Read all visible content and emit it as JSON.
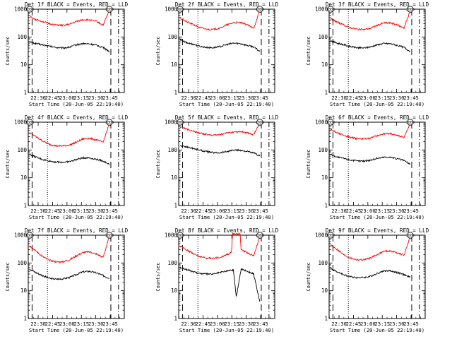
{
  "colors": {
    "background": "#ffffff",
    "axes": "#000000",
    "events": "#000000",
    "lld": "#ff0000"
  },
  "shared": {
    "ylabel": "Counts/sec",
    "xlabel": "Start Time (20-Jun-05 22:19:40)",
    "xticks": [
      "22:30",
      "22:45",
      "23:00",
      "23:15",
      "23:30",
      "23:45"
    ],
    "ytick_labels": [
      "1",
      "10",
      "100",
      "1000"
    ],
    "ylim": [
      1,
      1000
    ],
    "ymarker": "1000",
    "x_range_minutes": [
      0,
      100
    ],
    "xtick_minutes": [
      10.33,
      25.33,
      40.33,
      55.33,
      70.33,
      85.33
    ],
    "markers_minutes": {
      "long_dash": [
        4.0,
        86.0
      ],
      "dotted": [
        20.0
      ],
      "dash_dot": [
        94.0
      ]
    },
    "data_span_minutes": [
      1.5,
      84.5
    ]
  },
  "chart_data": [
    {
      "type": "line",
      "title": "Det 1f BLACK = Events, RED = LLD",
      "series": [
        {
          "name": "Events",
          "color": "black",
          "x": [
            1.5,
            8,
            15,
            22,
            29,
            36,
            43,
            50,
            57,
            64,
            71,
            78,
            84.5
          ],
          "y": [
            65,
            58,
            52,
            46,
            42,
            40,
            43,
            52,
            58,
            56,
            50,
            42,
            30
          ]
        },
        {
          "name": "LLD",
          "color": "red",
          "x": [
            1.5,
            8,
            15,
            22,
            29,
            36,
            43,
            50,
            57,
            64,
            71,
            78,
            84.5
          ],
          "y": [
            560,
            420,
            360,
            300,
            270,
            260,
            285,
            360,
            420,
            410,
            360,
            270,
            900
          ]
        }
      ]
    },
    {
      "type": "line",
      "title": "Det 2f BLACK = Events, RED = LLD",
      "series": [
        {
          "name": "Events",
          "color": "black",
          "x": [
            1.5,
            8,
            15,
            22,
            29,
            36,
            43,
            50,
            57,
            64,
            71,
            78,
            84.5
          ],
          "y": [
            80,
            62,
            55,
            46,
            42,
            41,
            45,
            53,
            60,
            58,
            50,
            44,
            30
          ]
        },
        {
          "name": "LLD",
          "color": "red",
          "x": [
            1.5,
            8,
            15,
            22,
            29,
            36,
            43,
            50,
            57,
            64,
            71,
            78,
            84.5
          ],
          "y": [
            480,
            360,
            280,
            220,
            190,
            185,
            210,
            270,
            330,
            330,
            280,
            200,
            900
          ]
        }
      ]
    },
    {
      "type": "line",
      "title": "Det 3f BLACK = Events, RED = LLD",
      "series": [
        {
          "name": "Events",
          "color": "black",
          "x": [
            1.5,
            8,
            15,
            22,
            29,
            36,
            43,
            50,
            57,
            64,
            71,
            78,
            84.5
          ],
          "y": [
            75,
            60,
            53,
            45,
            41,
            40,
            44,
            52,
            58,
            57,
            50,
            42,
            30
          ]
        },
        {
          "name": "LLD",
          "color": "red",
          "x": [
            1.5,
            8,
            15,
            22,
            29,
            36,
            43,
            50,
            57,
            64,
            71,
            78,
            84.5
          ],
          "y": [
            460,
            350,
            270,
            215,
            190,
            185,
            205,
            260,
            320,
            320,
            270,
            210,
            900
          ]
        }
      ]
    },
    {
      "type": "line",
      "title": "Det 4f BLACK = Events, RED = LLD",
      "series": [
        {
          "name": "Events",
          "color": "black",
          "x": [
            1.5,
            8,
            15,
            22,
            29,
            36,
            43,
            50,
            57,
            64,
            71,
            78,
            84.5
          ],
          "y": [
            70,
            55,
            45,
            40,
            37,
            36,
            38,
            45,
            52,
            52,
            46,
            40,
            30
          ]
        },
        {
          "name": "LLD",
          "color": "red",
          "x": [
            1.5,
            8,
            15,
            22,
            29,
            36,
            43,
            50,
            57,
            64,
            71,
            78,
            84.5
          ],
          "y": [
            420,
            300,
            210,
            160,
            140,
            140,
            150,
            190,
            250,
            260,
            230,
            190,
            900
          ]
        }
      ]
    },
    {
      "type": "line",
      "title": "Det 5f BLACK = Events, RED = LLD",
      "series": [
        {
          "name": "Events",
          "color": "black",
          "x": [
            1.5,
            8,
            15,
            22,
            29,
            36,
            43,
            50,
            57,
            64,
            71,
            78,
            84.5
          ],
          "y": [
            140,
            130,
            115,
            98,
            88,
            80,
            80,
            88,
            98,
            98,
            88,
            78,
            60
          ]
        },
        {
          "name": "LLD",
          "color": "red",
          "x": [
            1.5,
            8,
            15,
            22,
            29,
            36,
            43,
            50,
            57,
            64,
            71,
            78,
            84.5
          ],
          "y": [
            700,
            560,
            470,
            400,
            360,
            345,
            360,
            400,
            450,
            460,
            420,
            360,
            900
          ]
        }
      ]
    },
    {
      "type": "line",
      "title": "Det 6f BLACK = Events, RED = LLD",
      "series": [
        {
          "name": "Events",
          "color": "black",
          "x": [
            1.5,
            8,
            15,
            22,
            29,
            36,
            43,
            50,
            57,
            64,
            71,
            78,
            84.5
          ],
          "y": [
            70,
            56,
            50,
            44,
            40,
            40,
            43,
            50,
            55,
            55,
            48,
            42,
            30
          ]
        },
        {
          "name": "LLD",
          "color": "red",
          "x": [
            1.5,
            8,
            15,
            22,
            29,
            36,
            43,
            50,
            57,
            64,
            71,
            78,
            84.5
          ],
          "y": [
            560,
            420,
            340,
            285,
            255,
            250,
            270,
            325,
            385,
            385,
            340,
            280,
            900
          ]
        }
      ]
    },
    {
      "type": "line",
      "title": "Det 7f BLACK = Events, RED = LLD",
      "series": [
        {
          "name": "Events",
          "color": "black",
          "x": [
            1.5,
            8,
            15,
            22,
            29,
            36,
            43,
            50,
            57,
            64,
            71,
            78,
            84.5
          ],
          "y": [
            60,
            45,
            35,
            28,
            26,
            27,
            30,
            38,
            48,
            50,
            44,
            35,
            28
          ]
        },
        {
          "name": "LLD",
          "color": "red",
          "x": [
            1.5,
            8,
            15,
            22,
            29,
            36,
            43,
            50,
            57,
            64,
            71,
            78,
            84.5
          ],
          "y": [
            420,
            270,
            170,
            125,
            110,
            110,
            130,
            180,
            240,
            250,
            210,
            160,
            900
          ]
        }
      ]
    },
    {
      "type": "line",
      "title": "Det 8f BLACK = Events, RED = LLD",
      "series": [
        {
          "name": "Events",
          "color": "black",
          "x": [
            1.5,
            8,
            15,
            22,
            29,
            36,
            43,
            50,
            57,
            60,
            65,
            71,
            78,
            84.5
          ],
          "y": [
            70,
            58,
            48,
            42,
            40,
            40,
            45,
            52,
            56,
            6,
            60,
            52,
            40,
            4
          ]
        },
        {
          "name": "LLD",
          "color": "red",
          "x": [
            1.5,
            8,
            15,
            22,
            29,
            36,
            43,
            50,
            55,
            56,
            57,
            64,
            65,
            71,
            78,
            84.5
          ],
          "y": [
            400,
            300,
            220,
            170,
            150,
            148,
            160,
            200,
            240,
            1100,
            1100,
            1100,
            300,
            240,
            180,
            900
          ]
        }
      ]
    },
    {
      "type": "line",
      "title": "Det 9f BLACK = Events, RED = LLD",
      "series": [
        {
          "name": "Events",
          "color": "black",
          "x": [
            1.5,
            8,
            15,
            22,
            29,
            36,
            43,
            50,
            57,
            64,
            71,
            78,
            84.5
          ],
          "y": [
            65,
            48,
            38,
            32,
            30,
            30,
            33,
            42,
            52,
            52,
            45,
            38,
            30
          ]
        },
        {
          "name": "LLD",
          "color": "red",
          "x": [
            1.5,
            8,
            15,
            22,
            29,
            36,
            43,
            50,
            57,
            64,
            71,
            78,
            84.5
          ],
          "y": [
            460,
            310,
            200,
            150,
            130,
            130,
            150,
            200,
            260,
            270,
            230,
            190,
            900
          ]
        }
      ]
    }
  ]
}
